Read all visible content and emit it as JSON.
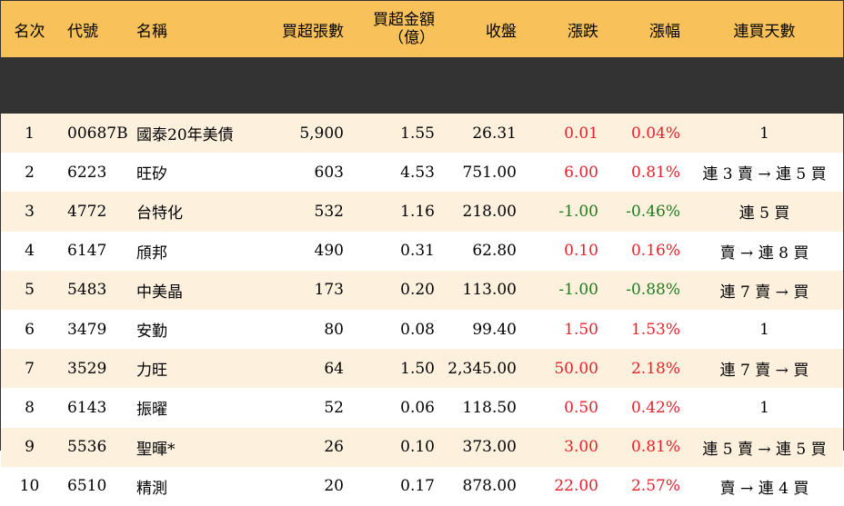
{
  "colors": {
    "header_bg": "#f8c15a",
    "row_alt_bg": "#fdf1de",
    "up": "#e8202a",
    "down": "#1f7a1f"
  },
  "headers": {
    "rank": "名次",
    "code": "代號",
    "name": "名稱",
    "net_buy_lots": "買超張數",
    "net_buy_amount_line1": "買超金額",
    "net_buy_amount_line2": "（億）",
    "close": "收盤",
    "change": "漲跌",
    "change_pct": "漲幅",
    "consecutive_days": "連買天數"
  },
  "rows": [
    {
      "rank": "1",
      "code": "00687B",
      "name": "國泰20年美債",
      "lots": "5,900",
      "amount": "1.55",
      "close": "26.31",
      "change": "0.01",
      "pct": "0.04%",
      "trend": "up",
      "days": "1"
    },
    {
      "rank": "2",
      "code": "6223",
      "name": "旺矽",
      "lots": "603",
      "amount": "4.53",
      "close": "751.00",
      "change": "6.00",
      "pct": "0.81%",
      "trend": "up",
      "days": "連 3 賣 → 連 5 買"
    },
    {
      "rank": "3",
      "code": "4772",
      "name": "台特化",
      "lots": "532",
      "amount": "1.16",
      "close": "218.00",
      "change": "-1.00",
      "pct": "-0.46%",
      "trend": "down",
      "days": "連 5 買"
    },
    {
      "rank": "4",
      "code": "6147",
      "name": "頎邦",
      "lots": "490",
      "amount": "0.31",
      "close": "62.80",
      "change": "0.10",
      "pct": "0.16%",
      "trend": "up",
      "days": "賣 → 連 8 買"
    },
    {
      "rank": "5",
      "code": "5483",
      "name": "中美晶",
      "lots": "173",
      "amount": "0.20",
      "close": "113.00",
      "change": "-1.00",
      "pct": "-0.88%",
      "trend": "down",
      "days": "連 7 賣 → 買"
    },
    {
      "rank": "6",
      "code": "3479",
      "name": "安勤",
      "lots": "80",
      "amount": "0.08",
      "close": "99.40",
      "change": "1.50",
      "pct": "1.53%",
      "trend": "up",
      "days": "1"
    },
    {
      "rank": "7",
      "code": "3529",
      "name": "力旺",
      "lots": "64",
      "amount": "1.50",
      "close": "2,345.00",
      "change": "50.00",
      "pct": "2.18%",
      "trend": "up",
      "days": "連 7 賣 → 買"
    },
    {
      "rank": "8",
      "code": "6143",
      "name": "振曜",
      "lots": "52",
      "amount": "0.06",
      "close": "118.50",
      "change": "0.50",
      "pct": "0.42%",
      "trend": "up",
      "days": "1"
    },
    {
      "rank": "9",
      "code": "5536",
      "name": "聖暉*",
      "lots": "26",
      "amount": "0.10",
      "close": "373.00",
      "change": "3.00",
      "pct": "0.81%",
      "trend": "up",
      "days": "連 5 賣 → 連 5 買"
    },
    {
      "rank": "10",
      "code": "6510",
      "name": "精測",
      "lots": "20",
      "amount": "0.17",
      "close": "878.00",
      "change": "22.00",
      "pct": "2.57%",
      "trend": "up",
      "days": "賣 → 連 4 買"
    }
  ]
}
